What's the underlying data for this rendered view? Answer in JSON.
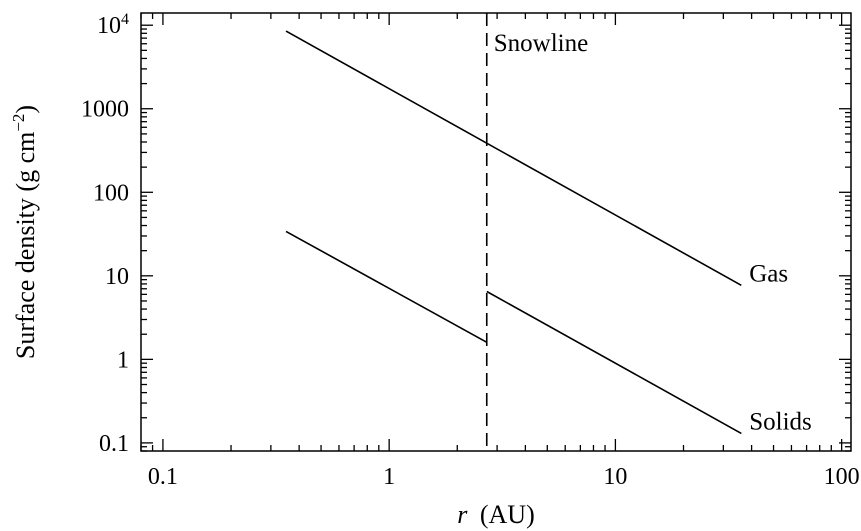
{
  "chart_data": {
    "type": "line",
    "title": "",
    "xlabel_var": "r",
    "xlabel_unit": "(AU)",
    "ylabel_text": "Surface density (g cm",
    "ylabel_exp": "−2",
    "ylabel_close": ")",
    "xscale": "log",
    "yscale": "log",
    "xlim": [
      0.08,
      110
    ],
    "ylim": [
      0.08,
      14000
    ],
    "grid": false,
    "x_ticks": [
      {
        "value": 0.1,
        "label": "0.1"
      },
      {
        "value": 1,
        "label": "1"
      },
      {
        "value": 10,
        "label": "10"
      },
      {
        "value": 100,
        "label": "100"
      }
    ],
    "y_ticks": [
      {
        "value": 0.1,
        "label": "0.1"
      },
      {
        "value": 1,
        "label": "1"
      },
      {
        "value": 10,
        "label": "10"
      },
      {
        "value": 100,
        "label": "100"
      },
      {
        "value": 1000,
        "label": "1000"
      },
      {
        "value": 10000,
        "label": "10",
        "exp": "4"
      }
    ],
    "series": [
      {
        "name": "Gas",
        "segments": [
          {
            "x": [
              0.35,
              36
            ],
            "y": [
              8500,
              7.7
            ]
          }
        ]
      },
      {
        "name": "Solids",
        "segments": [
          {
            "x": [
              0.35,
              2.7
            ],
            "y": [
              34,
              1.6
            ]
          },
          {
            "x": [
              2.7,
              36
            ],
            "y": [
              6.5,
              0.13
            ]
          }
        ]
      }
    ],
    "snowline": {
      "x": 2.7,
      "label": "Snowline"
    }
  }
}
